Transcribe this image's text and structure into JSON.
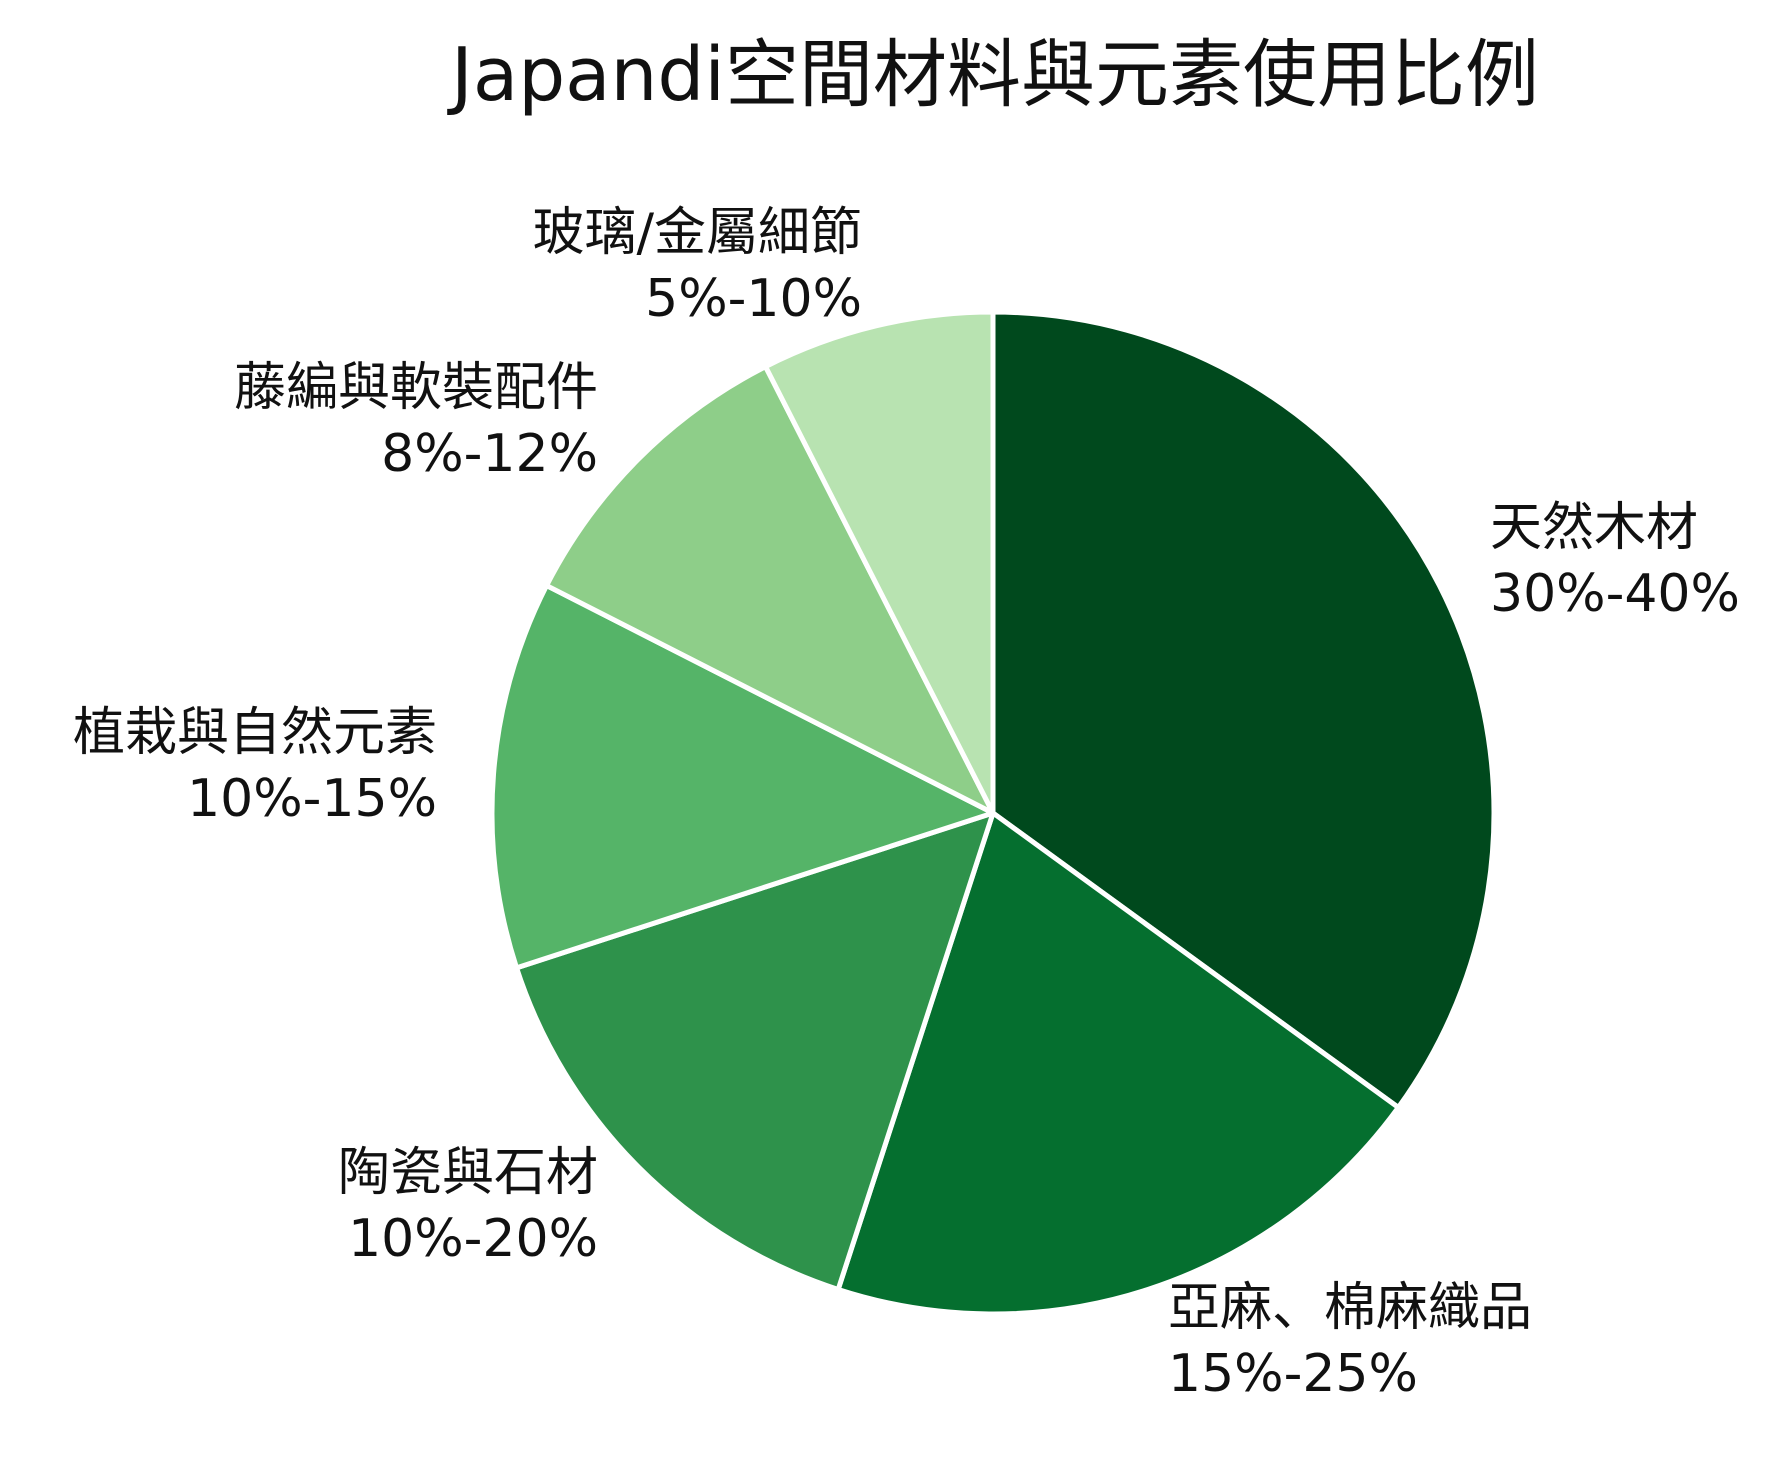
{
  "chart_data": {
    "type": "pie",
    "title": "Japandi空間材料與元素使用比例",
    "start_angle_deg": 0,
    "direction": "clockwise",
    "slices": [
      {
        "name": "天然木材",
        "range_label": "30%-40%",
        "value": 35,
        "color": "#00491D"
      },
      {
        "name": "亞麻、棉麻織品",
        "range_label": "15%-25%",
        "value": 20,
        "color": "#056F2F"
      },
      {
        "name": "陶瓷與石材",
        "range_label": "10%-20%",
        "value": 15,
        "color": "#2E924B"
      },
      {
        "name": "植栽與自然元素",
        "range_label": "10%-15%",
        "value": 12.5,
        "color": "#55B468"
      },
      {
        "name": "藤編與軟裝配件",
        "range_label": "8%-12%",
        "value": 10,
        "color": "#8ECE89"
      },
      {
        "name": "玻璃/金屬細節",
        "range_label": "5%-10%",
        "value": 7.5,
        "color": "#B8E3B1"
      }
    ],
    "legend": "none"
  }
}
